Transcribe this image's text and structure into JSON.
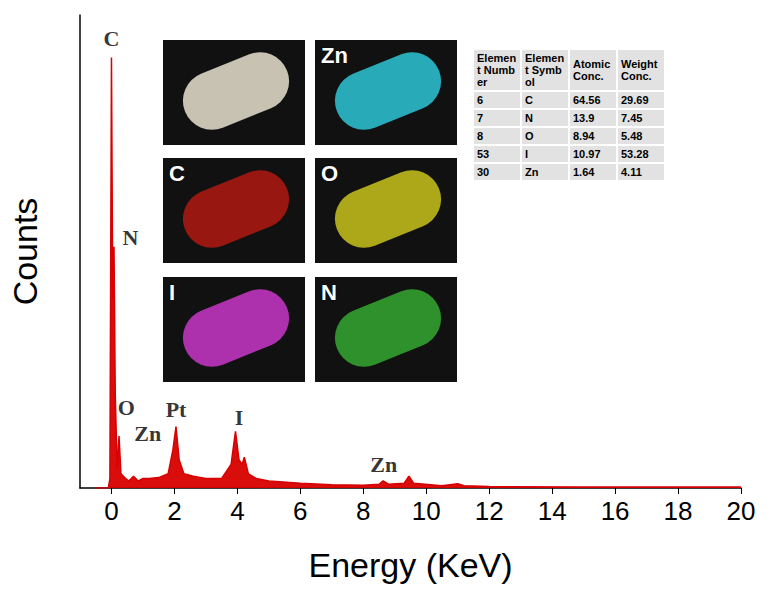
{
  "chart_data": {
    "type": "line",
    "x_label": "Energy (KeV)",
    "y_label": "Counts",
    "color": "#d80000",
    "x": [
      -0.5,
      -0.1,
      -0.05,
      0,
      0.04,
      0.08,
      0.12,
      0.18,
      0.24,
      0.3,
      0.45,
      0.55,
      0.7,
      0.85,
      1.0,
      1.2,
      1.5,
      1.8,
      1.95,
      2.05,
      2.15,
      2.3,
      2.6,
      3.0,
      3.5,
      3.8,
      3.94,
      4.05,
      4.15,
      4.22,
      4.35,
      4.6,
      5.0,
      6,
      7,
      8,
      8.5,
      8.63,
      8.8,
      9.3,
      9.45,
      9.6,
      10.5,
      11.0,
      11.2,
      12,
      15,
      20
    ],
    "values": [
      0,
      0,
      2,
      91,
      40,
      51,
      20,
      4,
      11,
      3,
      2,
      1.5,
      2.5,
      1.5,
      2,
      2,
      2.2,
      3,
      8,
      13,
      6,
      3,
      2.5,
      2,
      2,
      5,
      12,
      6,
      5,
      6.5,
      3,
      2,
      1.5,
      1,
      0.7,
      0.6,
      0.8,
      1.5,
      0.8,
      1,
      2.5,
      1,
      0.5,
      0.9,
      0.5,
      0.3,
      0.2,
      0.2
    ],
    "xlim": [
      -1,
      20
    ],
    "xticks": [
      0,
      2,
      4,
      6,
      8,
      10,
      12,
      14,
      16,
      18,
      20
    ],
    "ylim": [
      0,
      100
    ],
    "tick_labels": "x",
    "annotations": [
      {
        "text": "C",
        "x": 0,
        "y": 95
      },
      {
        "text": "N",
        "x": 0.6,
        "y": 53
      },
      {
        "text": "O",
        "x": 0.47,
        "y": 17
      },
      {
        "text": "Zn",
        "x": 1.15,
        "y": 11.6
      },
      {
        "text": "Pt",
        "x": 2.05,
        "y": 16.5
      },
      {
        "text": "I",
        "x": 4.05,
        "y": 15
      },
      {
        "text": "Zn",
        "x": 8.65,
        "y": 5
      }
    ]
  },
  "maps": [
    {
      "color": "#e8e2cf"
    },
    {
      "label": "Zn",
      "color": "#2ec6d6"
    },
    {
      "label": "C",
      "color": "#b01a12"
    },
    {
      "label": "O",
      "color": "#c9c21c"
    },
    {
      "label": "I",
      "color": "#c936c9"
    },
    {
      "label": "N",
      "color": "#35a830"
    }
  ],
  "table": {
    "header": [
      "Element Number",
      "Element Symbol",
      "Atomic Conc.",
      "Weight Conc."
    ],
    "rows": [
      [
        6,
        "C",
        64.56,
        29.69
      ],
      [
        7,
        "N",
        13.9,
        7.45
      ],
      [
        8,
        "O",
        8.94,
        5.48
      ],
      [
        53,
        "I",
        10.97,
        53.28
      ],
      [
        30,
        "Zn",
        1.64,
        4.11
      ]
    ]
  }
}
